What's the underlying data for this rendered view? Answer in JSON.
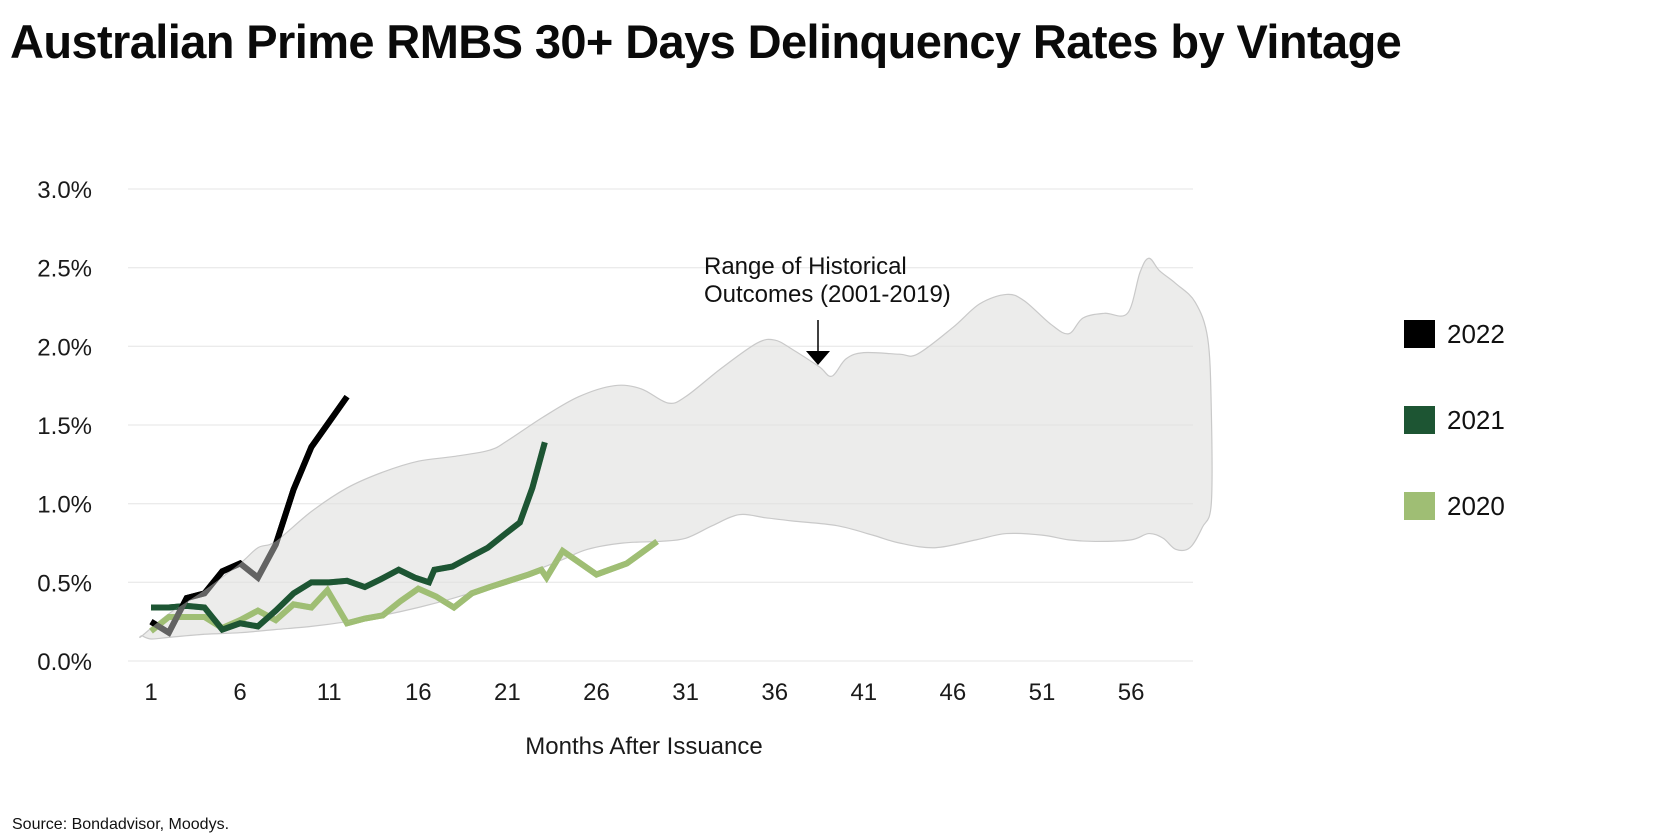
{
  "title": "Australian Prime RMBS 30+ Days Delinquency Rates by Vintage",
  "source": "Source: Bondadvisor, Moodys.",
  "chart_data": {
    "type": "line",
    "title": "Australian Prime RMBS 30+ Days Delinquency Rates by Vintage",
    "xlabel": "Months After Issuance",
    "ylabel": "",
    "xlim": [
      0,
      61
    ],
    "ylim": [
      0,
      3.0
    ],
    "x_ticks": [
      1,
      6,
      11,
      16,
      21,
      26,
      31,
      36,
      41,
      46,
      51,
      56
    ],
    "y_ticks": [
      0.0,
      0.5,
      1.0,
      1.5,
      2.0,
      2.5,
      3.0
    ],
    "y_tick_labels": [
      "0.0%",
      "0.5%",
      "1.0%",
      "1.5%",
      "2.0%",
      "2.5%",
      "3.0%"
    ],
    "grid": true,
    "legend_position": "right",
    "series": [
      {
        "name": "2022",
        "color": "#000000",
        "points": [
          [
            1,
            0.25
          ],
          [
            2,
            0.18
          ],
          [
            3,
            0.4
          ],
          [
            4,
            0.43
          ],
          [
            5,
            0.57
          ],
          [
            6,
            0.62
          ],
          [
            7,
            0.53
          ],
          [
            8,
            0.74
          ],
          [
            9,
            1.09
          ],
          [
            10,
            1.36
          ],
          [
            11,
            1.52
          ],
          [
            12,
            1.68
          ]
        ]
      },
      {
        "name": "2021",
        "color": "#1d5533",
        "points": [
          [
            1,
            0.34
          ],
          [
            2,
            0.34
          ],
          [
            3,
            0.35
          ],
          [
            4,
            0.34
          ],
          [
            5,
            0.2
          ],
          [
            6,
            0.24
          ],
          [
            7,
            0.22
          ],
          [
            8,
            0.32
          ],
          [
            9,
            0.43
          ],
          [
            10,
            0.5
          ],
          [
            11,
            0.5
          ],
          [
            12,
            0.51
          ],
          [
            13,
            0.47
          ],
          [
            13.9,
            0.52
          ],
          [
            14.9,
            0.58
          ],
          [
            15.8,
            0.53
          ],
          [
            16.6,
            0.5
          ],
          [
            16.9,
            0.58
          ],
          [
            17.9,
            0.6
          ],
          [
            18.9,
            0.66
          ],
          [
            19.9,
            0.72
          ],
          [
            20.9,
            0.81
          ],
          [
            21.7,
            0.88
          ],
          [
            22.4,
            1.1
          ],
          [
            23.1,
            1.39
          ]
        ]
      },
      {
        "name": "2020",
        "color": "#9fbe74",
        "points": [
          [
            1,
            0.19
          ],
          [
            2,
            0.28
          ],
          [
            3,
            0.28
          ],
          [
            4,
            0.28
          ],
          [
            5,
            0.21
          ],
          [
            6,
            0.26
          ],
          [
            7,
            0.32
          ],
          [
            8,
            0.26
          ],
          [
            9,
            0.36
          ],
          [
            10,
            0.34
          ],
          [
            10.9,
            0.45
          ],
          [
            12,
            0.24
          ],
          [
            13,
            0.27
          ],
          [
            14,
            0.29
          ],
          [
            15,
            0.38
          ],
          [
            16,
            0.46
          ],
          [
            17,
            0.41
          ],
          [
            18,
            0.34
          ],
          [
            19,
            0.43
          ],
          [
            20,
            0.47
          ],
          [
            21.1,
            0.51
          ],
          [
            22.2,
            0.55
          ],
          [
            22.9,
            0.58
          ],
          [
            23.2,
            0.53
          ],
          [
            24.1,
            0.7
          ],
          [
            26,
            0.55
          ],
          [
            27.7,
            0.62
          ],
          [
            29.4,
            0.76
          ]
        ]
      }
    ],
    "band": {
      "name": "Range of Historical Outcomes (2001-2019)",
      "color": "#e0e0df",
      "upper": [
        [
          0.5,
          0.16
        ],
        [
          2,
          0.3
        ],
        [
          4,
          0.45
        ],
        [
          6,
          0.62
        ],
        [
          7,
          0.72
        ],
        [
          8,
          0.76
        ],
        [
          10,
          0.95
        ],
        [
          12,
          1.1
        ],
        [
          14,
          1.2
        ],
        [
          16,
          1.27
        ],
        [
          18,
          1.3
        ],
        [
          20,
          1.34
        ],
        [
          21,
          1.4
        ],
        [
          23,
          1.55
        ],
        [
          25,
          1.68
        ],
        [
          27,
          1.75
        ],
        [
          28.5,
          1.73
        ],
        [
          30,
          1.64
        ],
        [
          31,
          1.68
        ],
        [
          33,
          1.86
        ],
        [
          35,
          2.02
        ],
        [
          36,
          2.04
        ],
        [
          37,
          1.98
        ],
        [
          38.5,
          1.87
        ],
        [
          39.2,
          1.81
        ],
        [
          40,
          1.92
        ],
        [
          41,
          1.96
        ],
        [
          43,
          1.95
        ],
        [
          44,
          1.95
        ],
        [
          46,
          2.12
        ],
        [
          47.5,
          2.27
        ],
        [
          49,
          2.33
        ],
        [
          50,
          2.29
        ],
        [
          51.5,
          2.14
        ],
        [
          52.5,
          2.08
        ],
        [
          53.3,
          2.18
        ],
        [
          54.5,
          2.21
        ],
        [
          55.8,
          2.21
        ],
        [
          56.5,
          2.47
        ],
        [
          57,
          2.56
        ],
        [
          57.6,
          2.48
        ],
        [
          58.5,
          2.4
        ],
        [
          59.6,
          2.28
        ],
        [
          60.3,
          2.05
        ],
        [
          60.5,
          1.6
        ]
      ],
      "lower": [
        [
          60.5,
          1.0
        ],
        [
          60.0,
          0.85
        ],
        [
          59.3,
          0.72
        ],
        [
          58.5,
          0.71
        ],
        [
          57.8,
          0.78
        ],
        [
          57,
          0.81
        ],
        [
          56,
          0.77
        ],
        [
          54,
          0.76
        ],
        [
          52.5,
          0.77
        ],
        [
          51,
          0.8
        ],
        [
          49,
          0.81
        ],
        [
          47.3,
          0.77
        ],
        [
          45,
          0.72
        ],
        [
          43,
          0.75
        ],
        [
          41.5,
          0.8
        ],
        [
          39.5,
          0.86
        ],
        [
          37,
          0.89
        ],
        [
          35.5,
          0.91
        ],
        [
          34,
          0.93
        ],
        [
          32.5,
          0.86
        ],
        [
          31,
          0.78
        ],
        [
          29.5,
          0.76
        ],
        [
          27.5,
          0.75
        ],
        [
          25.5,
          0.71
        ],
        [
          24,
          0.64
        ],
        [
          22,
          0.55
        ],
        [
          20,
          0.47
        ],
        [
          18,
          0.4
        ],
        [
          16,
          0.34
        ],
        [
          14,
          0.29
        ],
        [
          12,
          0.25
        ],
        [
          10,
          0.22
        ],
        [
          8,
          0.2
        ],
        [
          6,
          0.18
        ],
        [
          4,
          0.17
        ],
        [
          2,
          0.15
        ],
        [
          1,
          0.14
        ],
        [
          0.5,
          0.16
        ]
      ]
    },
    "annotations": [
      {
        "text_lines": [
          "Range of Historical",
          "Outcomes (2001-2019)"
        ],
        "arrow_to": [
          39,
          1.9
        ]
      }
    ]
  },
  "legend": [
    {
      "label": "2022",
      "color": "#000000"
    },
    {
      "label": "2021",
      "color": "#1d5533"
    },
    {
      "label": "2020",
      "color": "#9fbe74"
    }
  ]
}
